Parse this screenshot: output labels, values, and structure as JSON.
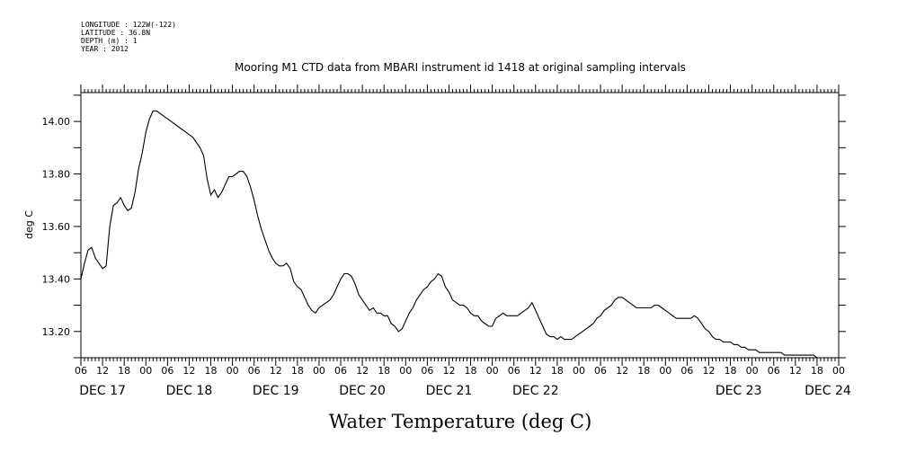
{
  "meta": {
    "longitude": "LONGITUDE : 122W(-122)",
    "latitude": "LATITUDE : 36.8N",
    "depth": "DEPTH (m) : 1",
    "year": "YEAR : 2012"
  },
  "chart_data": {
    "type": "line",
    "title": "Mooring M1 CTD data from MBARI instrument id 1418 at original sampling intervals",
    "xlabel": "Water Temperature (deg C)",
    "ylabel": "deg C",
    "x_unit": "hours",
    "xlim": [
      0,
      210
    ],
    "ylim": [
      13.1,
      14.11
    ],
    "yticks": [
      "13.20",
      "13.40",
      "13.60",
      "13.80",
      "14.00"
    ],
    "xtick_labels": [
      "06",
      "12",
      "18",
      "00",
      "06",
      "12",
      "18",
      "00",
      "06",
      "12",
      "18",
      "00",
      "06",
      "12",
      "18",
      "00",
      "06",
      "12",
      "18",
      "00",
      "06",
      "12",
      "18",
      "00",
      "06",
      "12",
      "18",
      "00",
      "06",
      "12",
      "18",
      "00",
      "06",
      "12",
      "18",
      "00"
    ],
    "day_labels": [
      "DEC 17",
      "DEC 18",
      "DEC 19",
      "DEC 20",
      "DEC 21",
      "DEC 22",
      "DEC 23",
      "DEC 24"
    ],
    "grid": false,
    "series": [
      {
        "x": [
          0,
          1,
          2,
          3,
          4,
          5,
          6,
          7,
          8,
          9,
          10,
          11,
          12,
          13,
          14,
          15,
          16,
          17,
          18,
          19,
          20,
          21,
          22,
          23,
          24,
          25,
          26,
          27,
          28,
          29,
          30,
          31,
          32,
          33,
          34,
          35,
          36,
          37,
          38,
          39,
          40,
          41,
          42,
          43,
          44,
          45,
          46,
          47,
          48,
          49,
          50,
          51,
          52,
          53,
          54,
          55,
          56,
          57,
          58,
          59,
          60,
          61,
          62,
          63,
          64,
          65,
          66,
          67,
          68,
          69,
          70,
          71,
          72,
          73,
          74,
          75,
          76,
          77,
          78,
          79,
          80,
          81,
          82,
          83,
          84,
          85,
          86,
          87,
          88,
          89,
          90,
          91,
          92,
          93,
          94,
          95,
          96,
          97,
          98,
          99,
          100,
          101,
          102,
          103,
          104,
          105,
          106,
          107,
          108,
          109,
          110,
          111,
          112,
          113,
          114,
          115,
          116,
          117,
          118,
          119,
          120,
          121,
          122,
          123,
          124,
          125,
          126,
          127,
          128,
          129,
          130,
          131,
          132,
          133,
          134,
          135,
          136,
          137,
          138,
          139,
          140,
          141,
          142,
          143,
          144,
          145,
          146,
          147,
          148,
          149,
          150,
          151,
          152,
          153,
          154,
          155,
          156,
          157,
          158,
          159,
          160,
          161,
          162,
          163,
          164,
          165,
          166,
          167,
          168,
          169,
          170,
          171,
          172,
          173,
          174,
          175,
          176,
          177,
          178,
          179,
          180,
          181,
          182,
          183,
          184,
          185,
          186,
          187,
          188,
          189,
          190,
          191,
          192,
          193,
          194,
          195,
          196,
          197,
          198,
          199,
          200,
          201,
          202,
          203,
          204,
          205,
          206,
          207,
          208,
          209,
          210
        ],
        "values": [
          13.4,
          13.46,
          13.51,
          13.52,
          13.48,
          13.46,
          13.44,
          13.45,
          13.6,
          13.68,
          13.69,
          13.71,
          13.68,
          13.66,
          13.67,
          13.73,
          13.82,
          13.88,
          13.96,
          14.01,
          14.04,
          14.04,
          14.03,
          14.02,
          14.01,
          14.0,
          13.99,
          13.98,
          13.97,
          13.96,
          13.95,
          13.94,
          13.92,
          13.9,
          13.87,
          13.78,
          13.72,
          13.74,
          13.71,
          13.73,
          13.76,
          13.79,
          13.79,
          13.8,
          13.81,
          13.81,
          13.79,
          13.75,
          13.7,
          13.64,
          13.59,
          13.55,
          13.51,
          13.48,
          13.46,
          13.45,
          13.45,
          13.46,
          13.44,
          13.39,
          13.37,
          13.36,
          13.33,
          13.3,
          13.28,
          13.27,
          13.29,
          13.3,
          13.31,
          13.32,
          13.34,
          13.37,
          13.4,
          13.42,
          13.42,
          13.41,
          13.38,
          13.34,
          13.32,
          13.3,
          13.28,
          13.29,
          13.27,
          13.27,
          13.26,
          13.26,
          13.23,
          13.22,
          13.2,
          13.21,
          13.24,
          13.27,
          13.29,
          13.32,
          13.34,
          13.36,
          13.37,
          13.39,
          13.4,
          13.42,
          13.41,
          13.37,
          13.35,
          13.32,
          13.31,
          13.3,
          13.3,
          13.29,
          13.27,
          13.26,
          13.26,
          13.24,
          13.23,
          13.22,
          13.22,
          13.25,
          13.26,
          13.27,
          13.26,
          13.26,
          13.26,
          13.26,
          13.27,
          13.28,
          13.29,
          13.31,
          13.28,
          13.25,
          13.22,
          13.19,
          13.18,
          13.18,
          13.17,
          13.18,
          13.17,
          13.17,
          13.17,
          13.18,
          13.19,
          13.2,
          13.21,
          13.22,
          13.23,
          13.25,
          13.26,
          13.28,
          13.29,
          13.3,
          13.32,
          13.33,
          13.33,
          13.32,
          13.31,
          13.3,
          13.29,
          13.29,
          13.29,
          13.29,
          13.29,
          13.3,
          13.3,
          13.29,
          13.28,
          13.27,
          13.26,
          13.25,
          13.25,
          13.25,
          13.25,
          13.25,
          13.26,
          13.25,
          13.23,
          13.21,
          13.2,
          13.18,
          13.17,
          13.17,
          13.16,
          13.16,
          13.16,
          13.15,
          13.15,
          13.14,
          13.14,
          13.13,
          13.13,
          13.13,
          13.12,
          13.12,
          13.12,
          13.12,
          13.12,
          13.12,
          13.12,
          13.11,
          13.11,
          13.11,
          13.11,
          13.11,
          13.11,
          13.11,
          13.11,
          13.11,
          13.1,
          13.1,
          13.1,
          13.1,
          13.1,
          13.1,
          13.1
        ]
      }
    ]
  }
}
